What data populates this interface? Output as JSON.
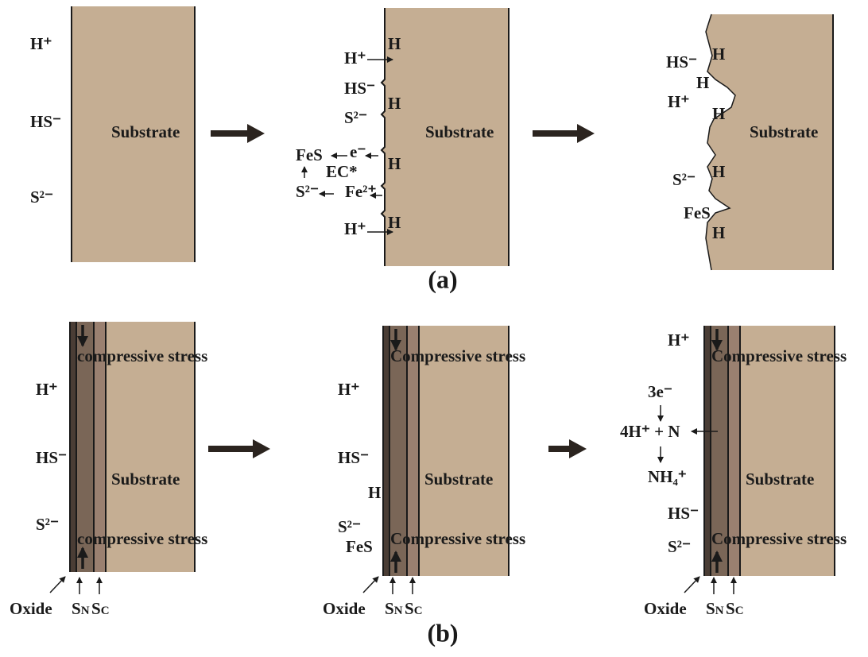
{
  "panel_a": {
    "caption": "(a)",
    "stage_1": {
      "ions": [
        "H⁺",
        "HS⁻",
        "S²⁻"
      ],
      "substrate": "Substrate"
    },
    "stage_2": {
      "ions": [
        "H⁺",
        "HS⁻",
        "S²⁻",
        "H⁺"
      ],
      "h": [
        "H",
        "H",
        "H",
        "H"
      ],
      "reaction": {
        "fes": "FeS",
        "electron": "e⁻",
        "ec": "EC*",
        "sulfide": "S²⁻",
        "iron": "Fe²⁺"
      },
      "substrate": "Substrate"
    },
    "stage_3": {
      "ions": [
        "HS⁻",
        "H⁺",
        "S²⁻",
        "FeS"
      ],
      "h": [
        "H",
        "H",
        "H",
        "H",
        "H"
      ],
      "substrate": "Substrate"
    }
  },
  "panel_b": {
    "caption": "(b)",
    "stage_1": {
      "ions": [
        "H⁺",
        "HS⁻",
        "S²⁻"
      ],
      "stress": [
        "compressive stress",
        "compressive stress"
      ],
      "substrate": "Substrate",
      "layers": {
        "oxide": "Oxide",
        "sn": {
          "base": "S",
          "sub": "N"
        },
        "sc": {
          "base": "S",
          "sub": "C"
        }
      }
    },
    "stage_2": {
      "ions": [
        "H⁺",
        "HS⁻",
        "H",
        "S²⁻",
        "FeS"
      ],
      "stress": [
        "Compressive stress",
        "Compressive stress"
      ],
      "substrate": "Substrate",
      "layers": {
        "oxide": "Oxide",
        "sn": {
          "base": "S",
          "sub": "N"
        },
        "sc": {
          "base": "S",
          "sub": "C"
        }
      }
    },
    "stage_3": {
      "ions": [
        "H⁺",
        "HS⁻",
        "S²⁻"
      ],
      "reaction": {
        "electrons": "3e⁻",
        "equation": "4H⁺ + N",
        "product": "NH₄⁺"
      },
      "stress": [
        "Compressive stress",
        "Compressive stress"
      ],
      "substrate": "Substrate",
      "layers": {
        "oxide": "Oxide",
        "sn": {
          "base": "S",
          "sub": "N"
        },
        "sc": {
          "base": "S",
          "sub": "C"
        }
      }
    }
  }
}
